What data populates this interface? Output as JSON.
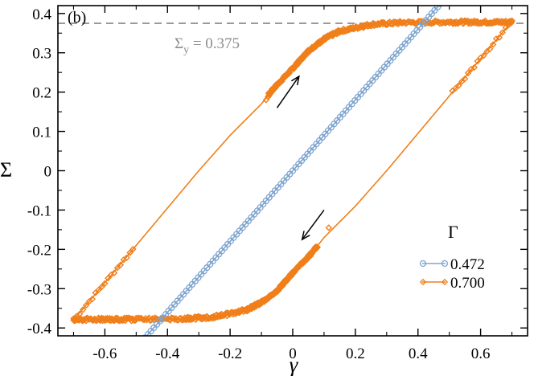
{
  "chart_data": {
    "type": "line",
    "panel_label": "(b)",
    "xlabel": "γ",
    "ylabel": "Σ",
    "xlim": [
      -0.75,
      0.75
    ],
    "ylim": [
      -0.42,
      0.42
    ],
    "x_ticks": [
      -0.6,
      -0.4,
      -0.2,
      0,
      0.2,
      0.4,
      0.6
    ],
    "x_tick_labels": [
      "-0.6",
      "-0.4",
      "-0.2",
      "0",
      "0.2",
      "0.4",
      "0.6"
    ],
    "y_ticks": [
      -0.4,
      -0.3,
      -0.2,
      -0.1,
      0,
      0.1,
      0.2,
      0.3,
      0.4
    ],
    "y_tick_labels": [
      "-0.4",
      "-0.3",
      "-0.2",
      "-0.1",
      "0",
      "0.1",
      "0.2",
      "0.3",
      "0.4"
    ],
    "legend": {
      "title": "Γ",
      "placement": "lower-right"
    },
    "reference_line": {
      "y": 0.375,
      "label_main": "Σ",
      "label_sub": "y",
      "label_rest": " = 0.375",
      "color": "#8c8c8c"
    },
    "series": [
      {
        "name": "0.472",
        "color": "#7fa5cf",
        "marker": "circle",
        "x": [
          -0.472,
          0.472
        ],
        "y": [
          -0.425,
          0.425
        ]
      },
      {
        "name": "0.700",
        "color": "#f07f1a",
        "marker": "diamond",
        "upper_branch": {
          "x": [
            -0.7,
            -0.3,
            -0.2,
            -0.1,
            -0.06,
            0.0,
            0.05,
            0.1,
            0.15,
            0.25,
            0.35,
            0.5,
            0.6,
            0.7
          ],
          "y": [
            -0.38,
            0.0,
            0.09,
            0.17,
            0.21,
            0.26,
            0.305,
            0.335,
            0.355,
            0.372,
            0.377,
            0.378,
            0.378,
            0.378
          ]
        },
        "lower_branch": {
          "x": [
            0.7,
            0.3,
            0.2,
            0.1,
            0.06,
            0.0,
            -0.05,
            -0.1,
            -0.15,
            -0.25,
            -0.35,
            -0.5,
            -0.6,
            -0.7
          ],
          "y": [
            0.38,
            0.0,
            -0.09,
            -0.17,
            -0.21,
            -0.26,
            -0.305,
            -0.335,
            -0.355,
            -0.372,
            -0.377,
            -0.378,
            -0.378,
            -0.378
          ]
        }
      }
    ],
    "arrows": [
      {
        "from": [
          -0.05,
          0.16
        ],
        "to": [
          0.02,
          0.24
        ],
        "direction": "up-right"
      },
      {
        "from": [
          0.1,
          -0.1
        ],
        "to": [
          0.03,
          -0.175
        ],
        "direction": "down-left"
      }
    ]
  }
}
